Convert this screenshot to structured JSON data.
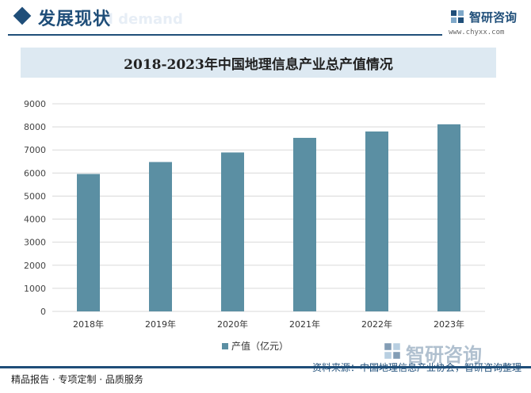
{
  "header": {
    "title": "发展现状",
    "ghost_text": "d demand",
    "brand_name": "智研咨询",
    "brand_url": "www.chyxx.com",
    "accent_color": "#1f4e79"
  },
  "chart_data": {
    "type": "bar",
    "title": "2018-2023年中国地理信息产业总产值情况",
    "categories": [
      "2018年",
      "2019年",
      "2020年",
      "2021年",
      "2022年",
      "2023年"
    ],
    "series": [
      {
        "name": "产值（亿元）",
        "values": [
          5957,
          6476,
          6890,
          7524,
          7800,
          8111
        ],
        "color": "#5b8fa3"
      }
    ],
    "ylim": [
      0,
      9000
    ],
    "yticks": [
      0,
      1000,
      2000,
      3000,
      4000,
      5000,
      6000,
      7000,
      8000,
      9000
    ],
    "grid": true,
    "legend": "bottom",
    "xlabel": "",
    "ylabel": ""
  },
  "footer": {
    "left_text": "精品报告 · 专项定制 · 品质服务",
    "source_text": "资料来源：中国地理信息产业协会，智研咨询整理",
    "watermark_text": "智研咨询"
  }
}
